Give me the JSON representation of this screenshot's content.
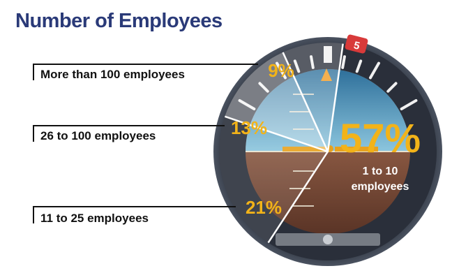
{
  "title": "Number of Employees",
  "colors": {
    "title": "#2a3a78",
    "percent": "#f2b319",
    "label_white": "#ffffff",
    "dial_bezel": "#2a2f3a",
    "sky": "#5fa3c8",
    "ground": "#9a6048"
  },
  "chart_data": {
    "type": "pie",
    "title": "Number of Employees",
    "slices": [
      {
        "label": "1 to 10 employees",
        "line1": "1 to 10",
        "line2": "employees",
        "value": 57,
        "display": "57%"
      },
      {
        "label": "11 to 25 employees",
        "value": 21,
        "display": "21%"
      },
      {
        "label": "26 to 100 employees",
        "value": 13,
        "display": "13%"
      },
      {
        "label": "More than 100 employees",
        "value": 9,
        "display": "9%"
      }
    ],
    "legend": "left"
  },
  "gauge": {
    "badge": "5",
    "scale_marks": [
      "2",
      "3",
      "1",
      "1",
      "2",
      "3"
    ]
  }
}
